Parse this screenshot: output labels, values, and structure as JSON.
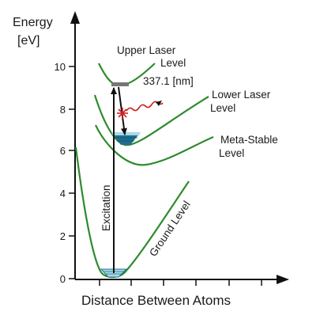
{
  "y_axis": {
    "title_line1": "Energy",
    "title_line2": "[eV]",
    "ticks": [
      "0",
      "2",
      "4",
      "6",
      "8",
      "10"
    ]
  },
  "x_axis": {
    "title": "Distance Between Atoms"
  },
  "levels": {
    "upper_line1": "Upper Laser",
    "upper_line2": "Level",
    "lower_line1": "Lower Laser",
    "lower_line2": "Level",
    "meta_line1": "Meta-Stable",
    "meta_line2": "Level",
    "ground": "Ground Level"
  },
  "transitions": {
    "emission": "337.1 [nm]",
    "excitation": "Excitation"
  },
  "colors": {
    "curve": "#2e8b2e",
    "arrow": "#111111",
    "photon": "#cc2222",
    "pool": "#1f6f8f",
    "pool_light": "#a9d8e8",
    "upper_fill": "#777777"
  }
}
